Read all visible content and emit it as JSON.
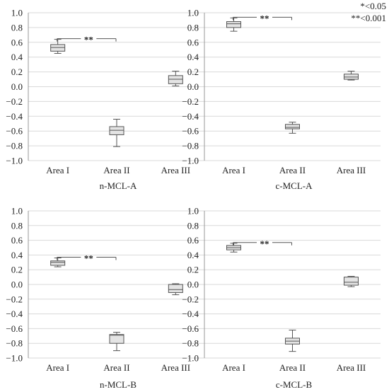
{
  "legend": {
    "line1": "*<0.05",
    "line2": "**<0.001"
  },
  "colors": {
    "box_fill": "#e4e4e4",
    "box_stroke": "#555555",
    "grid": "#d9d9d9",
    "axis": "#9a9a9a",
    "text": "#222222"
  },
  "chart_data": [
    {
      "type": "box",
      "title": "n-MCL-A",
      "categories": [
        "Area I",
        "Area II",
        "Area III"
      ],
      "ylim": [
        -1.0,
        1.0
      ],
      "yticks": [
        "1.0",
        "0.8",
        "0.6",
        "0.4",
        "0.2",
        "0.0",
        "−0.2",
        "−0.4",
        "−0.6",
        "−0.8",
        "−1.0"
      ],
      "grid": true,
      "boxes": [
        {
          "min": 0.45,
          "q1": 0.48,
          "median": 0.53,
          "q3": 0.57,
          "max": 0.64
        },
        {
          "min": -0.81,
          "q1": -0.65,
          "median": -0.59,
          "q3": -0.54,
          "max": -0.44
        },
        {
          "min": 0.01,
          "q1": 0.04,
          "median": 0.1,
          "q3": 0.15,
          "max": 0.21
        }
      ],
      "significance": {
        "from": 0,
        "to": 1,
        "label": "**"
      }
    },
    {
      "type": "box",
      "title": "c-MCL-A",
      "categories": [
        "Area I",
        "Area II",
        "Area III"
      ],
      "ylim": [
        -1.0,
        1.0
      ],
      "yticks": [
        "1.0",
        "0.8",
        "0.6",
        "0.4",
        "0.2",
        "0.0",
        "−0.2",
        "−0.4",
        "−0.6",
        "−0.8",
        "−1.0"
      ],
      "grid": true,
      "boxes": [
        {
          "min": 0.75,
          "q1": 0.8,
          "median": 0.85,
          "q3": 0.88,
          "max": 0.93
        },
        {
          "min": -0.63,
          "q1": -0.57,
          "median": -0.55,
          "q3": -0.51,
          "max": -0.48
        },
        {
          "min": 0.09,
          "q1": 0.1,
          "median": 0.13,
          "q3": 0.17,
          "max": 0.21
        }
      ],
      "significance": {
        "from": 0,
        "to": 1,
        "label": "**"
      }
    },
    {
      "type": "box",
      "title": "n-MCL-B",
      "categories": [
        "Area I",
        "Area II",
        "Area III"
      ],
      "ylim": [
        -1.0,
        1.0
      ],
      "yticks": [
        "1.0",
        "0.8",
        "0.6",
        "0.4",
        "0.2",
        "0.0",
        "−0.2",
        "−0.4",
        "−0.6",
        "−0.8",
        "−1.0"
      ],
      "grid": true,
      "boxes": [
        {
          "min": 0.24,
          "q1": 0.26,
          "median": 0.3,
          "q3": 0.32,
          "max": 0.36
        },
        {
          "min": -0.9,
          "q1": -0.8,
          "median": -0.69,
          "q3": -0.68,
          "max": -0.65
        },
        {
          "min": -0.14,
          "q1": -0.11,
          "median": -0.07,
          "q3": 0.0,
          "max": 0.01
        }
      ],
      "significance": {
        "from": 0,
        "to": 1,
        "label": "**"
      }
    },
    {
      "type": "box",
      "title": "c-MCL-B",
      "categories": [
        "Area I",
        "Area II",
        "Area III"
      ],
      "ylim": [
        -1.0,
        1.0
      ],
      "yticks": [
        "1.0",
        "0.8",
        "0.6",
        "0.4",
        "0.2",
        "0.0",
        "−0.2",
        "−0.4",
        "−0.6",
        "−0.8",
        "−1.0"
      ],
      "grid": true,
      "boxes": [
        {
          "min": 0.44,
          "q1": 0.47,
          "median": 0.5,
          "q3": 0.53,
          "max": 0.56
        },
        {
          "min": -0.91,
          "q1": -0.81,
          "median": -0.77,
          "q3": -0.73,
          "max": -0.62
        },
        {
          "min": -0.03,
          "q1": -0.01,
          "median": 0.03,
          "q3": 0.1,
          "max": 0.11
        }
      ],
      "significance": {
        "from": 0,
        "to": 1,
        "label": "**"
      }
    }
  ]
}
